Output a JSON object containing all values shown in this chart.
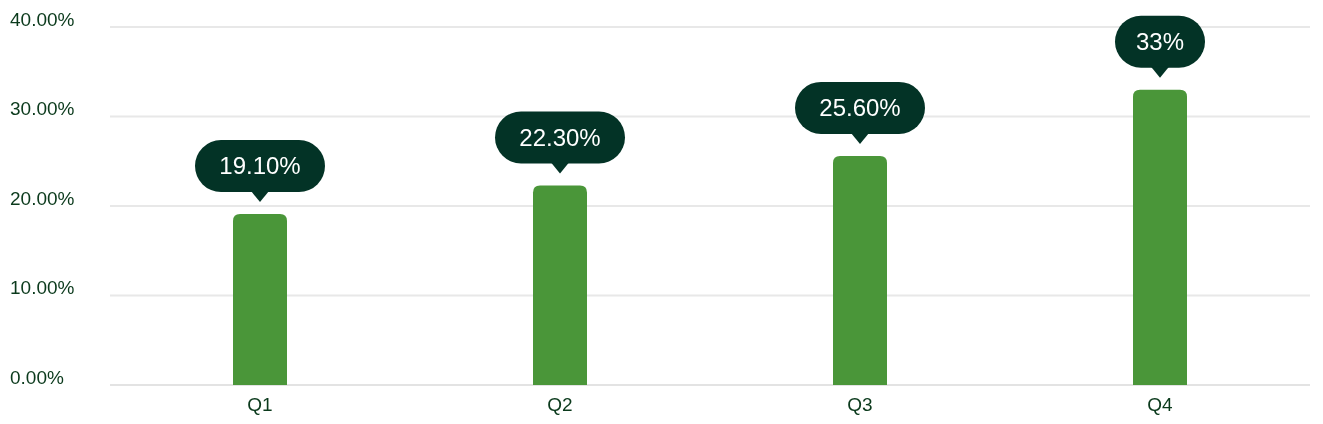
{
  "chart_data": {
    "type": "bar",
    "categories": [
      "Q1",
      "Q2",
      "Q3",
      "Q4"
    ],
    "values": [
      19.1,
      22.3,
      25.6,
      33
    ],
    "value_labels": [
      "19.10%",
      "22.30%",
      "25.60%",
      "33%"
    ],
    "color": "#4a9639",
    "ylim": [
      0,
      40
    ],
    "yticks": [
      {
        "value": 0,
        "label": "0.00%"
      },
      {
        "value": 10,
        "label": "10.00%"
      },
      {
        "value": 20,
        "label": "20.00%"
      },
      {
        "value": 30,
        "label": "30.00%"
      },
      {
        "value": 40,
        "label": "40.00%"
      }
    ],
    "grid": "y"
  }
}
